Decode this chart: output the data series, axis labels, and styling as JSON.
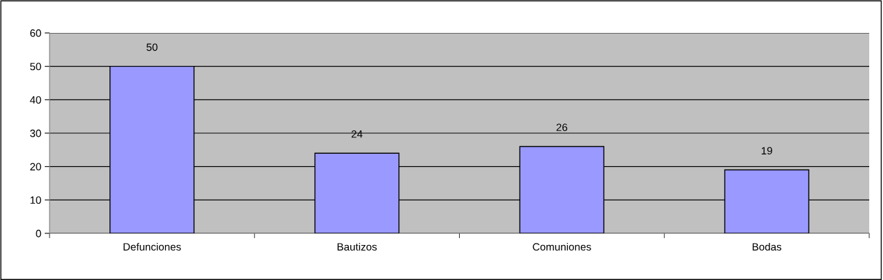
{
  "chart_data": {
    "type": "bar",
    "categories": [
      "Defunciones",
      "Bautizos",
      "Comuniones",
      "Bodas"
    ],
    "values": [
      50,
      24,
      26,
      19
    ],
    "color": "#9999ff",
    "ylim": [
      0,
      60
    ],
    "yticks": [
      0,
      10,
      20,
      30,
      40,
      50,
      60
    ],
    "grid": "y",
    "data_labels": true
  }
}
